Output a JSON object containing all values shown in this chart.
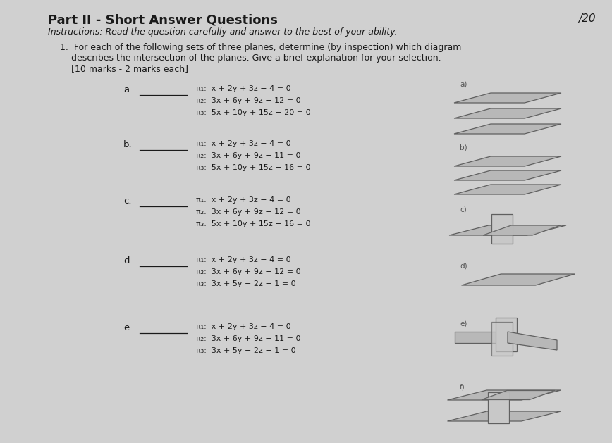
{
  "title": "Part II - Short Answer Questions",
  "score": "/20",
  "instructions": "Instructions: Read the question carefully and answer to the best of your ability.",
  "q1_line1": "1.  For each of the following sets of three planes, determine (by inspection) which diagram",
  "q1_line2": "    describes the intersection of the planes. Give a brief explanation for your selection.",
  "q1_line3": "    [10 marks - 2 marks each]",
  "parts": [
    {
      "label": "a.",
      "lines": [
        "π₁:  x + 2y + 3z − 4 = 0",
        "π₂:  3x + 6y + 9z − 12 = 0",
        "π₃:  5x + 10y + 15z − 20 = 0"
      ]
    },
    {
      "label": "b.",
      "lines": [
        "π₁:  x + 2y + 3z − 4 = 0",
        "π₂:  3x + 6y + 9z − 11 = 0",
        "π₃:  5x + 10y + 15z − 16 = 0"
      ]
    },
    {
      "label": "c.",
      "lines": [
        "π₁:  x + 2y + 3z − 4 = 0",
        "π₂:  3x + 6y + 9z − 12 = 0",
        "π₃:  5x + 10y + 15z − 16 = 0"
      ]
    },
    {
      "label": "d.",
      "lines": [
        "π₁:  x + 2y + 3z − 4 = 0",
        "π₂:  3x + 6y + 9z − 12 = 0",
        "π₃:  3x + 5y − 2z − 1 = 0"
      ]
    },
    {
      "label": "e.",
      "lines": [
        "π₁:  x + 2y + 3z − 4 = 0",
        "π₂:  3x + 6y + 9z − 11 = 0",
        "π₃:  3x + 5y − 2z − 1 = 0"
      ]
    }
  ],
  "diag_labels": [
    "a)",
    "b)",
    "c)",
    "d)",
    "e)",
    "f)"
  ],
  "bg_color": "#d0d0d0",
  "text_color": "#1a1a1a",
  "dim_color": "#555555",
  "plane_fill": "#b8b8b8",
  "plane_edge": "#606060",
  "plane_fill2": "#c8c8c8"
}
